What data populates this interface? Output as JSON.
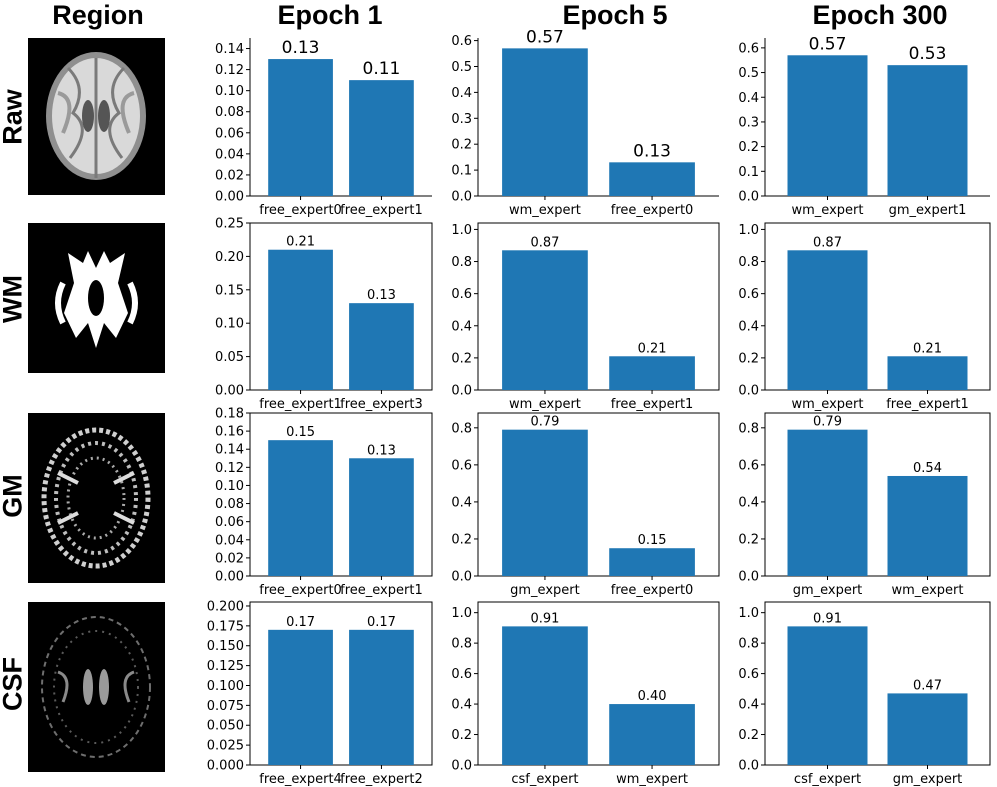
{
  "column_headers": [
    "Region",
    "Epoch 1",
    "Epoch 5",
    "Epoch 300"
  ],
  "row_labels": [
    "Raw",
    "WM",
    "GM",
    "CSF"
  ],
  "image_descriptions": [
    "raw-brain-slice-image",
    "wm-mask-image",
    "gm-mask-image",
    "csf-mask-image"
  ],
  "bar_color": "#1f77b4",
  "chart_data": [
    {
      "type": "bar",
      "row": "Raw",
      "column": "Epoch 1",
      "categories": [
        "free_expert0",
        "free_expert1"
      ],
      "values": [
        0.13,
        0.11
      ],
      "value_labels": [
        "0.13",
        "0.11"
      ],
      "ylim": [
        0,
        0.15
      ],
      "yticks": [
        "0.00",
        "0.02",
        "0.04",
        "0.06",
        "0.08",
        "0.10",
        "0.12",
        "0.14"
      ],
      "ytick_values": [
        0,
        0.02,
        0.04,
        0.06,
        0.08,
        0.1,
        0.12,
        0.14
      ]
    },
    {
      "type": "bar",
      "row": "Raw",
      "column": "Epoch 5",
      "categories": [
        "wm_expert",
        "free_expert0"
      ],
      "values": [
        0.57,
        0.13
      ],
      "value_labels": [
        "0.57",
        "0.13"
      ],
      "ylim": [
        0,
        0.61
      ],
      "yticks": [
        "0.0",
        "0.1",
        "0.2",
        "0.3",
        "0.4",
        "0.5",
        "0.6"
      ],
      "ytick_values": [
        0,
        0.1,
        0.2,
        0.3,
        0.4,
        0.5,
        0.6
      ]
    },
    {
      "type": "bar",
      "row": "Raw",
      "column": "Epoch 300",
      "categories": [
        "wm_expert",
        "gm_expert1"
      ],
      "values": [
        0.57,
        0.53
      ],
      "value_labels": [
        "0.57",
        "0.53"
      ],
      "ylim": [
        0,
        0.64
      ],
      "yticks": [
        "0.0",
        "0.1",
        "0.2",
        "0.3",
        "0.4",
        "0.5",
        "0.6"
      ],
      "ytick_values": [
        0,
        0.1,
        0.2,
        0.3,
        0.4,
        0.5,
        0.6
      ]
    },
    {
      "type": "bar",
      "row": "WM",
      "column": "Epoch 1",
      "categories": [
        "free_expert1",
        "free_expert3"
      ],
      "values": [
        0.21,
        0.13
      ],
      "value_labels": [
        "0.21",
        "0.13"
      ],
      "ylim": [
        0,
        0.25
      ],
      "yticks": [
        "0.00",
        "0.05",
        "0.10",
        "0.15",
        "0.20",
        "0.25"
      ],
      "ytick_values": [
        0,
        0.05,
        0.1,
        0.15,
        0.2,
        0.25
      ]
    },
    {
      "type": "bar",
      "row": "WM",
      "column": "Epoch 5",
      "categories": [
        "wm_expert",
        "free_expert1"
      ],
      "values": [
        0.87,
        0.21
      ],
      "value_labels": [
        "0.87",
        "0.21"
      ],
      "ylim": [
        0,
        1.04
      ],
      "yticks": [
        "0.0",
        "0.2",
        "0.4",
        "0.6",
        "0.8",
        "1.0"
      ],
      "ytick_values": [
        0,
        0.2,
        0.4,
        0.6,
        0.8,
        1.0
      ]
    },
    {
      "type": "bar",
      "row": "WM",
      "column": "Epoch 300",
      "categories": [
        "wm_expert",
        "free_expert1"
      ],
      "values": [
        0.87,
        0.21
      ],
      "value_labels": [
        "0.87",
        "0.21"
      ],
      "ylim": [
        0,
        1.04
      ],
      "yticks": [
        "0.0",
        "0.2",
        "0.4",
        "0.6",
        "0.8",
        "1.0"
      ],
      "ytick_values": [
        0,
        0.2,
        0.4,
        0.6,
        0.8,
        1.0
      ]
    },
    {
      "type": "bar",
      "row": "GM",
      "column": "Epoch 1",
      "categories": [
        "free_expert0",
        "free_expert1"
      ],
      "values": [
        0.15,
        0.13
      ],
      "value_labels": [
        "0.15",
        "0.13"
      ],
      "ylim": [
        0,
        0.18
      ],
      "yticks": [
        "0.00",
        "0.02",
        "0.04",
        "0.06",
        "0.08",
        "0.10",
        "0.12",
        "0.14",
        "0.16",
        "0.18"
      ],
      "ytick_values": [
        0,
        0.02,
        0.04,
        0.06,
        0.08,
        0.1,
        0.12,
        0.14,
        0.16,
        0.18
      ]
    },
    {
      "type": "bar",
      "row": "GM",
      "column": "Epoch 5",
      "categories": [
        "gm_expert",
        "free_expert0"
      ],
      "values": [
        0.79,
        0.15
      ],
      "value_labels": [
        "0.79",
        "0.15"
      ],
      "ylim": [
        0,
        0.88
      ],
      "yticks": [
        "0.0",
        "0.2",
        "0.4",
        "0.6",
        "0.8"
      ],
      "ytick_values": [
        0,
        0.2,
        0.4,
        0.6,
        0.8
      ]
    },
    {
      "type": "bar",
      "row": "GM",
      "column": "Epoch 300",
      "categories": [
        "gm_expert",
        "wm_expert"
      ],
      "values": [
        0.79,
        0.54
      ],
      "value_labels": [
        "0.79",
        "0.54"
      ],
      "ylim": [
        0,
        0.88
      ],
      "yticks": [
        "0.0",
        "0.2",
        "0.4",
        "0.6",
        "0.8"
      ],
      "ytick_values": [
        0,
        0.2,
        0.4,
        0.6,
        0.8
      ]
    },
    {
      "type": "bar",
      "row": "CSF",
      "column": "Epoch 1",
      "categories": [
        "free_expert4",
        "free_expert2"
      ],
      "values": [
        0.17,
        0.17
      ],
      "value_labels": [
        "0.17",
        "0.17"
      ],
      "ylim": [
        0,
        0.205
      ],
      "yticks": [
        "0.000",
        "0.025",
        "0.050",
        "0.075",
        "0.100",
        "0.125",
        "0.150",
        "0.175",
        "0.200"
      ],
      "ytick_values": [
        0,
        0.025,
        0.05,
        0.075,
        0.1,
        0.125,
        0.15,
        0.175,
        0.2
      ]
    },
    {
      "type": "bar",
      "row": "CSF",
      "column": "Epoch 5",
      "categories": [
        "csf_expert",
        "wm_expert"
      ],
      "values": [
        0.91,
        0.4
      ],
      "value_labels": [
        "0.91",
        "0.40"
      ],
      "ylim": [
        0,
        1.07
      ],
      "yticks": [
        "0.0",
        "0.2",
        "0.4",
        "0.6",
        "0.8",
        "1.0"
      ],
      "ytick_values": [
        0,
        0.2,
        0.4,
        0.6,
        0.8,
        1.0
      ]
    },
    {
      "type": "bar",
      "row": "CSF",
      "column": "Epoch 300",
      "categories": [
        "csf_expert",
        "gm_expert"
      ],
      "values": [
        0.91,
        0.47
      ],
      "value_labels": [
        "0.91",
        "0.47"
      ],
      "ylim": [
        0,
        1.07
      ],
      "yticks": [
        "0.0",
        "0.2",
        "0.4",
        "0.6",
        "0.8",
        "1.0"
      ],
      "ytick_values": [
        0,
        0.2,
        0.4,
        0.6,
        0.8,
        1.0
      ]
    }
  ]
}
